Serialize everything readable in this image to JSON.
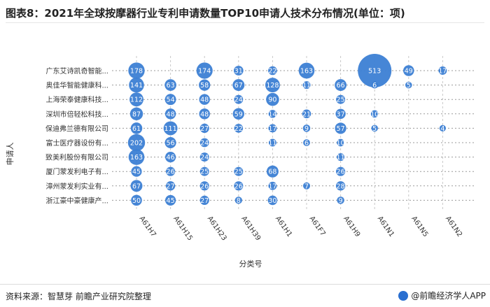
{
  "title": "图表8：2021年全球按摩器行业专利申请数量TOP10申请人技术分布情况(单位：项)",
  "footer": {
    "source": "资料来源：智慧芽 前瞻产业研究院整理",
    "brand": "@前瞻经济学人APP"
  },
  "colors": {
    "bubble": "#3c7fd4",
    "bubble_text": "#ffffff",
    "vline": "#c8c8c8",
    "hline": "#9a9a9a"
  },
  "chart_data": {
    "type": "bubble",
    "xlabel": "分类号",
    "ylabel": "申请人",
    "x_categories": [
      "A61H7",
      "A61H15",
      "A61H23",
      "A61H39",
      "A61H1",
      "A61F7",
      "A61H9",
      "A61N1",
      "A61N5",
      "A61N2"
    ],
    "y_categories": [
      "广东艾诗凯奇智能...",
      "奥佳华智能健康科...",
      "上海荣泰健康科技...",
      "深圳市倍轻松科技...",
      "保迪弗兰德有限公司",
      "富士医疗器设份有...",
      "致美利股份有限公司",
      "厦门蒙发利电子有...",
      "漳州蒙发利实业有...",
      "浙江豪中豪健康产..."
    ],
    "points": [
      {
        "row": 0,
        "col": 0,
        "value": 178
      },
      {
        "row": 0,
        "col": 2,
        "value": 174
      },
      {
        "row": 0,
        "col": 3,
        "value": 31
      },
      {
        "row": 0,
        "col": 4,
        "value": 22
      },
      {
        "row": 0,
        "col": 5,
        "value": 163
      },
      {
        "row": 0,
        "col": 7,
        "value": 513
      },
      {
        "row": 0,
        "col": 8,
        "value": 49
      },
      {
        "row": 0,
        "col": 9,
        "value": 17
      },
      {
        "row": 1,
        "col": 0,
        "value": 141
      },
      {
        "row": 1,
        "col": 1,
        "value": 63
      },
      {
        "row": 1,
        "col": 2,
        "value": 58
      },
      {
        "row": 1,
        "col": 3,
        "value": 67
      },
      {
        "row": 1,
        "col": 4,
        "value": 128
      },
      {
        "row": 1,
        "col": 5,
        "value": 11
      },
      {
        "row": 1,
        "col": 6,
        "value": 66
      },
      {
        "row": 1,
        "col": 7,
        "value": 6
      },
      {
        "row": 1,
        "col": 8,
        "value": 5
      },
      {
        "row": 2,
        "col": 0,
        "value": 112
      },
      {
        "row": 2,
        "col": 1,
        "value": 54
      },
      {
        "row": 2,
        "col": 2,
        "value": 48
      },
      {
        "row": 2,
        "col": 3,
        "value": 24
      },
      {
        "row": 2,
        "col": 4,
        "value": 90
      },
      {
        "row": 2,
        "col": 6,
        "value": 25
      },
      {
        "row": 3,
        "col": 0,
        "value": 87
      },
      {
        "row": 3,
        "col": 1,
        "value": 48
      },
      {
        "row": 3,
        "col": 2,
        "value": 48
      },
      {
        "row": 3,
        "col": 3,
        "value": 59
      },
      {
        "row": 3,
        "col": 4,
        "value": 14
      },
      {
        "row": 3,
        "col": 5,
        "value": 21
      },
      {
        "row": 3,
        "col": 6,
        "value": 37
      },
      {
        "row": 3,
        "col": 7,
        "value": 10
      },
      {
        "row": 4,
        "col": 0,
        "value": 61
      },
      {
        "row": 4,
        "col": 1,
        "value": 111
      },
      {
        "row": 4,
        "col": 2,
        "value": 27
      },
      {
        "row": 4,
        "col": 3,
        "value": 22
      },
      {
        "row": 4,
        "col": 4,
        "value": 17
      },
      {
        "row": 4,
        "col": 5,
        "value": 9
      },
      {
        "row": 4,
        "col": 6,
        "value": 57
      },
      {
        "row": 4,
        "col": 7,
        "value": 5
      },
      {
        "row": 4,
        "col": 9,
        "value": 4
      },
      {
        "row": 5,
        "col": 0,
        "value": 202
      },
      {
        "row": 5,
        "col": 1,
        "value": 56
      },
      {
        "row": 5,
        "col": 2,
        "value": 24
      },
      {
        "row": 5,
        "col": 4,
        "value": 11
      },
      {
        "row": 5,
        "col": 5,
        "value": 6
      },
      {
        "row": 5,
        "col": 6,
        "value": 10
      },
      {
        "row": 6,
        "col": 0,
        "value": 163
      },
      {
        "row": 6,
        "col": 1,
        "value": 46
      },
      {
        "row": 6,
        "col": 2,
        "value": 24
      },
      {
        "row": 6,
        "col": 6,
        "value": 11
      },
      {
        "row": 7,
        "col": 0,
        "value": 45
      },
      {
        "row": 7,
        "col": 1,
        "value": 26
      },
      {
        "row": 7,
        "col": 2,
        "value": 25
      },
      {
        "row": 7,
        "col": 3,
        "value": 25
      },
      {
        "row": 7,
        "col": 4,
        "value": 68
      },
      {
        "row": 7,
        "col": 6,
        "value": 26
      },
      {
        "row": 8,
        "col": 0,
        "value": 67
      },
      {
        "row": 8,
        "col": 1,
        "value": 27
      },
      {
        "row": 8,
        "col": 2,
        "value": 26
      },
      {
        "row": 8,
        "col": 3,
        "value": 26
      },
      {
        "row": 8,
        "col": 4,
        "value": 17
      },
      {
        "row": 8,
        "col": 5,
        "value": 7
      },
      {
        "row": 8,
        "col": 6,
        "value": 28
      },
      {
        "row": 9,
        "col": 0,
        "value": 50
      },
      {
        "row": 9,
        "col": 1,
        "value": 45
      },
      {
        "row": 9,
        "col": 2,
        "value": 27
      },
      {
        "row": 9,
        "col": 3,
        "value": 8
      },
      {
        "row": 9,
        "col": 4,
        "value": 30
      },
      {
        "row": 9,
        "col": 6,
        "value": 9
      }
    ],
    "grid": true
  }
}
